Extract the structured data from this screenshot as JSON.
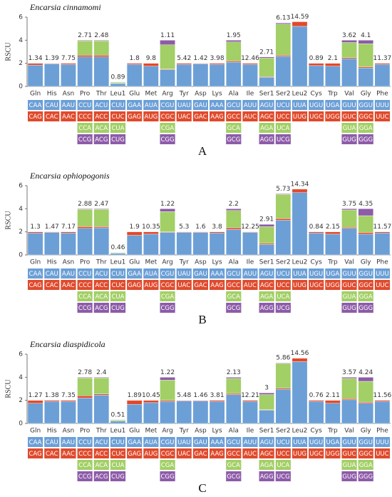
{
  "chart_data": [
    {
      "type": "bar",
      "title": "Encarsia cinnamomi",
      "panel": "A",
      "y_label": "RSCU",
      "ylim": [
        0,
        6
      ],
      "yticks": [
        0,
        2,
        4,
        6
      ],
      "categories": [
        "Gln",
        "His",
        "Asn",
        "Pro",
        "Thr",
        "Leu1",
        "Glu",
        "Met",
        "Arg",
        "Tyr",
        "Asp",
        "Lys",
        "Ala",
        "Ile",
        "Ser1",
        "Ser2",
        "Leu2",
        "Cys",
        "Trp",
        "Val",
        "Gly",
        "Phe"
      ],
      "annotations": [
        1.34,
        1.39,
        7.75,
        2.71,
        2.48,
        0.89,
        1.8,
        9.8,
        1.11,
        5.42,
        1.42,
        3.98,
        1.95,
        12.46,
        2.71,
        6.13,
        14.59,
        0.89,
        2.1,
        3.62,
        4.1,
        11.37
      ],
      "series": [
        {
          "color": "#6b9fd6",
          "values": [
            1.85,
            1.95,
            1.9,
            2.55,
            2.55,
            0.25,
            1.9,
            1.75,
            1.45,
            1.9,
            1.95,
            1.9,
            2.1,
            1.9,
            0.8,
            2.6,
            5.2,
            1.8,
            1.75,
            2.4,
            1.6,
            1.9
          ]
        },
        {
          "color": "#e04a2c",
          "values": [
            0.15,
            0.05,
            0.1,
            0.15,
            0.15,
            0.02,
            0.1,
            0.25,
            0.05,
            0.1,
            0.05,
            0.1,
            0.1,
            0.1,
            0.05,
            0.1,
            0.4,
            0.2,
            0.25,
            0.1,
            0.1,
            0.1
          ]
        },
        {
          "color": "#a2cf66",
          "values": [
            null,
            null,
            null,
            1.25,
            1.25,
            0.1,
            null,
            null,
            2.1,
            null,
            null,
            null,
            1.65,
            null,
            1.6,
            2.7,
            null,
            null,
            null,
            1.3,
            2.0,
            null
          ]
        },
        {
          "color": "#8d5ba8",
          "values": [
            null,
            null,
            null,
            0.05,
            0.05,
            0.01,
            null,
            null,
            0.4,
            null,
            null,
            null,
            0.15,
            null,
            0.1,
            0.1,
            null,
            null,
            null,
            0.2,
            0.3,
            null
          ]
        }
      ],
      "codon_rows": [
        [
          "CAA",
          "CAU",
          "AAU",
          "CCU",
          "ACU",
          "CUU",
          "GAA",
          "AUA",
          "CGU",
          "UAU",
          "GAU",
          "AAA",
          "GCU",
          "AUU",
          "AGU",
          "UCU",
          "UUA",
          "UGU",
          "UGA",
          "GUU",
          "GGU",
          "UUU"
        ],
        [
          "CAG",
          "CAC",
          "AAC",
          "CCC",
          "ACC",
          "CUC",
          "GAG",
          "AUG",
          "CGC",
          "UAC",
          "GAC",
          "AAG",
          "GCC",
          "AUC",
          "AGC",
          "UCC",
          "UUG",
          "UGC",
          "UGG",
          "GUC",
          "GGC",
          "UUC"
        ],
        [
          null,
          null,
          null,
          "CCA",
          "ACA",
          "CUA",
          null,
          null,
          "CGA",
          null,
          null,
          null,
          "GCA",
          null,
          "AGA",
          "UCA",
          null,
          null,
          null,
          "GUA",
          "GGA",
          null
        ],
        [
          null,
          null,
          null,
          "CCG",
          "ACG",
          "CUG",
          null,
          null,
          "CGG",
          null,
          null,
          null,
          "GCG",
          null,
          "AGG",
          "UCG",
          null,
          null,
          null,
          "GUG",
          "GGG",
          null
        ]
      ]
    },
    {
      "type": "bar",
      "title": "Encarsia ophiopogonis",
      "panel": "B",
      "y_label": "RSCU",
      "ylim": [
        0,
        6
      ],
      "yticks": [
        0,
        2,
        4,
        6
      ],
      "categories": [
        "Gln",
        "His",
        "Asn",
        "Pro",
        "Thr",
        "Leu1",
        "Glu",
        "Met",
        "Arg",
        "Tyr",
        "Asp",
        "Lys",
        "Ala",
        "Ile",
        "Ser1",
        "Ser2",
        "Leu2",
        "Cys",
        "Trp",
        "Val",
        "Gly",
        "Phe"
      ],
      "annotations": [
        1.3,
        1.47,
        7.17,
        2.88,
        2.47,
        0.46,
        1.9,
        10.35,
        1.22,
        5.3,
        1.6,
        3.8,
        2.2,
        12.25,
        2.91,
        5.73,
        14.34,
        0.84,
        2.15,
        3.75,
        4.35,
        11.57
      ],
      "series": [
        {
          "color": "#6b9fd6",
          "values": [
            1.9,
            1.95,
            1.9,
            2.3,
            2.35,
            0.15,
            1.7,
            1.8,
            1.95,
            1.95,
            1.95,
            1.9,
            2.2,
            1.95,
            0.9,
            3.0,
            5.4,
            1.9,
            1.8,
            2.3,
            1.8,
            1.9
          ]
        },
        {
          "color": "#e04a2c",
          "values": [
            0.1,
            0.05,
            0.1,
            0.15,
            0.1,
            0.01,
            0.3,
            0.2,
            0.05,
            0.05,
            0.05,
            0.1,
            0.15,
            0.05,
            0.1,
            0.15,
            0.3,
            0.1,
            0.2,
            0.1,
            0.15,
            0.1
          ]
        },
        {
          "color": "#a2cf66",
          "values": [
            null,
            null,
            null,
            1.5,
            1.5,
            0.06,
            null,
            null,
            1.75,
            null,
            null,
            null,
            1.5,
            null,
            1.45,
            2.1,
            null,
            null,
            null,
            1.5,
            1.45,
            null
          ]
        },
        {
          "color": "#8d5ba8",
          "values": [
            null,
            null,
            null,
            0.05,
            0.05,
            0.01,
            null,
            null,
            0.25,
            null,
            null,
            null,
            0.15,
            null,
            0.2,
            0.05,
            null,
            null,
            null,
            0.1,
            0.6,
            null
          ]
        }
      ],
      "codon_rows": [
        [
          "CAA",
          "CAU",
          "AAU",
          "CCU",
          "ACU",
          "CUU",
          "GAA",
          "AUA",
          "CGU",
          "UAU",
          "GAU",
          "AAA",
          "GCU",
          "AUU",
          "AGU",
          "UCU",
          "UUA",
          "UGU",
          "UGA",
          "GUU",
          "GGU",
          "UUU"
        ],
        [
          "CAG",
          "CAC",
          "AAC",
          "CCC",
          "ACC",
          "CUC",
          "GAG",
          "AUG",
          "CGC",
          "UAC",
          "GAC",
          "AAG",
          "GCC",
          "AUC",
          "AGC",
          "UCC",
          "UUG",
          "UGC",
          "UGG",
          "GUC",
          "GGC",
          "UUC"
        ],
        [
          null,
          null,
          null,
          "CCA",
          "ACA",
          "CUA",
          null,
          null,
          "CGA",
          null,
          null,
          null,
          "GCA",
          null,
          "AGA",
          "UCA",
          null,
          null,
          null,
          "GUA",
          "GGA",
          null
        ],
        [
          null,
          null,
          null,
          "CCG",
          "ACG",
          "CUG",
          null,
          null,
          "CGG",
          null,
          null,
          null,
          "GCG",
          null,
          "AGG",
          "UCG",
          null,
          null,
          null,
          "GUG",
          "GGG",
          null
        ]
      ]
    },
    {
      "type": "bar",
      "title": "Encarsia diaspidicola",
      "panel": "C",
      "y_label": "RSCU",
      "ylim": [
        0,
        6
      ],
      "yticks": [
        0,
        2,
        4,
        6
      ],
      "categories": [
        "Gln",
        "His",
        "Asn",
        "Pro",
        "Thr",
        "Leu1",
        "Glu",
        "Met",
        "Arg",
        "Tyr",
        "Asp",
        "Lys",
        "Ala",
        "Ile",
        "Ser1",
        "Ser2",
        "Leu2",
        "Cys",
        "Trp",
        "Val",
        "Gly",
        "Phe"
      ],
      "annotations": [
        1.27,
        1.38,
        7.35,
        2.78,
        2.4,
        0.51,
        1.89,
        10.45,
        1.22,
        5.48,
        1.46,
        3.81,
        2.13,
        12.21,
        3,
        5.86,
        14.56,
        0.76,
        2.11,
        3.57,
        4.24,
        11.56
      ],
      "series": [
        {
          "color": "#6b9fd6",
          "values": [
            1.75,
            1.9,
            1.9,
            2.2,
            2.45,
            0.2,
            1.65,
            1.8,
            1.9,
            1.95,
            1.95,
            1.9,
            2.5,
            1.9,
            1.15,
            2.95,
            5.35,
            1.9,
            1.75,
            2.05,
            1.75,
            1.9
          ]
        },
        {
          "color": "#e04a2c",
          "values": [
            0.25,
            0.1,
            0.1,
            0.2,
            0.1,
            0.01,
            0.35,
            0.2,
            0.1,
            0.05,
            0.05,
            0.1,
            0.1,
            0.1,
            0.05,
            0.1,
            0.3,
            0.1,
            0.25,
            0.1,
            0.1,
            0.1
          ]
        },
        {
          "color": "#a2cf66",
          "values": [
            null,
            null,
            null,
            1.55,
            1.4,
            0.1,
            null,
            null,
            1.75,
            null,
            null,
            null,
            1.3,
            null,
            1.3,
            2.15,
            null,
            null,
            null,
            1.75,
            1.8,
            null
          ]
        },
        {
          "color": "#8d5ba8",
          "values": [
            null,
            null,
            null,
            0.05,
            0.05,
            0.01,
            null,
            null,
            0.25,
            null,
            null,
            null,
            0.1,
            null,
            0.15,
            0.05,
            null,
            null,
            null,
            0.1,
            0.35,
            null
          ]
        }
      ],
      "codon_rows": [
        [
          "CAA",
          "CAU",
          "AAU",
          "CCU",
          "ACU",
          "CUU",
          "GAA",
          "AUA",
          "CGU",
          "UAU",
          "GAU",
          "AAA",
          "GCU",
          "AUU",
          "AGU",
          "UCU",
          "UUA",
          "UGU",
          "UGA",
          "GUU",
          "GGU",
          "UUU"
        ],
        [
          "CAG",
          "CAC",
          "AAC",
          "CCC",
          "ACC",
          "CUC",
          "GAG",
          "AUG",
          "CGC",
          "UAC",
          "GAC",
          "AAG",
          "GCC",
          "AUC",
          "AGC",
          "UCC",
          "UUG",
          "UGC",
          "UGG",
          "GUC",
          "GGC",
          "UUC"
        ],
        [
          null,
          null,
          null,
          "CCA",
          "ACA",
          "CUA",
          null,
          null,
          "CGA",
          null,
          null,
          null,
          "GCA",
          null,
          "AGA",
          "UCA",
          null,
          null,
          null,
          "GUA",
          "GGA",
          null
        ],
        [
          null,
          null,
          null,
          "CCG",
          "ACG",
          "CUG",
          null,
          null,
          "CGG",
          null,
          null,
          null,
          "GCG",
          null,
          "AGG",
          "UCG",
          null,
          null,
          null,
          "GUG",
          "GGG",
          null
        ]
      ]
    }
  ]
}
